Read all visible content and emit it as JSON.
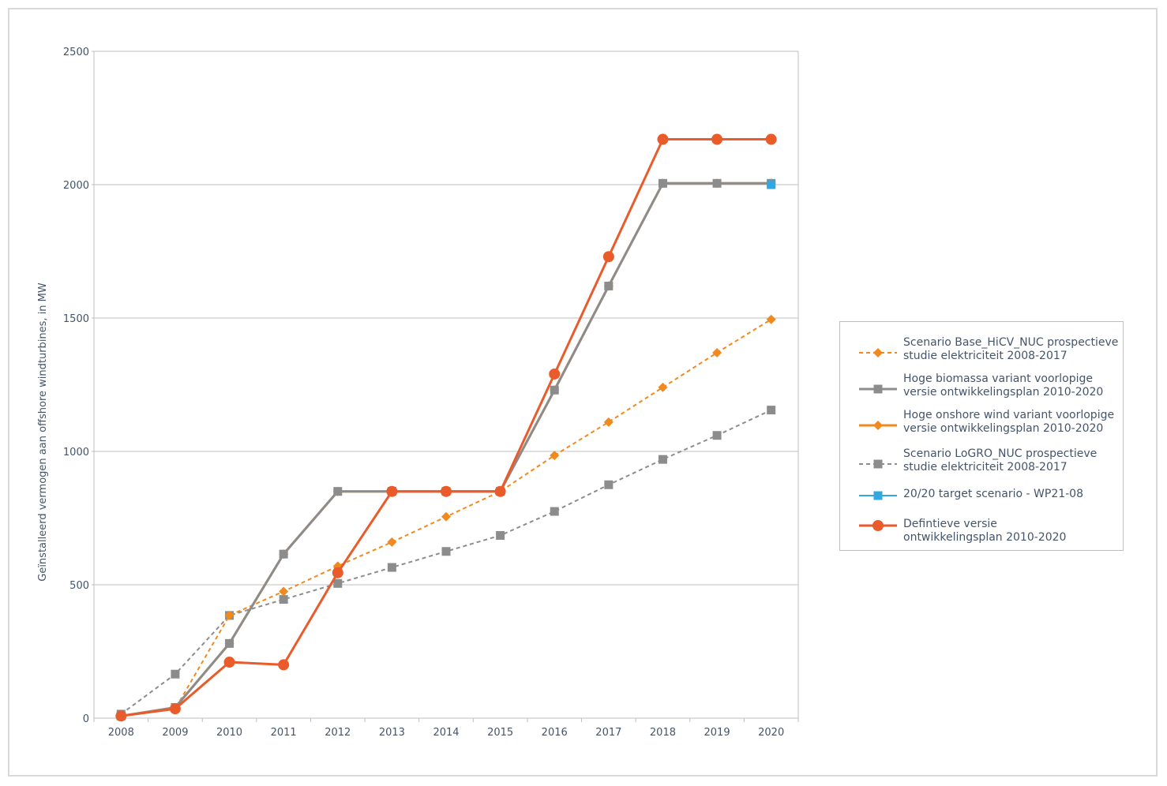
{
  "chart_data": {
    "type": "line",
    "title": "",
    "xlabel": "",
    "ylabel": "Geïnstalleerd vermogen aan offshore windturbines, in MW",
    "ylim": [
      0,
      2500
    ],
    "yticks": [
      0,
      500,
      1000,
      1500,
      2000,
      2500
    ],
    "grid": true,
    "legend_position": "right",
    "categories": [
      "2008",
      "2009",
      "2010",
      "2011",
      "2012",
      "2013",
      "2014",
      "2015",
      "2016",
      "2017",
      "2018",
      "2019",
      "2020"
    ],
    "series": [
      {
        "name": "Scenario Base_HiCV_NUC prospectieve studie elektriciteit 2008-2017",
        "color": "#f08a1f",
        "dash": true,
        "marker": "diamond",
        "lineWidth": 2,
        "values": [
          8,
          35,
          385,
          475,
          570,
          660,
          755,
          850,
          985,
          1110,
          1240,
          1370,
          1495
        ]
      },
      {
        "name": "Hoge biomassa variant voorlopige versie ontwikkelingsplan 2010-2020",
        "color": "#8c8c8c",
        "dash": false,
        "marker": "square",
        "lineWidth": 3,
        "values": [
          8,
          40,
          280,
          615,
          850,
          850,
          850,
          850,
          1230,
          1620,
          2005,
          2005,
          2005
        ]
      },
      {
        "name": "Hoge onshore wind variant voorlopige versie ontwikkelingsplan 2010-2020",
        "color": "#f08a1f",
        "dash": false,
        "marker": "diamond",
        "lineWidth": 3,
        "values": [
          8,
          40,
          280,
          615,
          850,
          850,
          850,
          850,
          1230,
          1620,
          2005,
          2005,
          2005
        ]
      },
      {
        "name": "Scenario LoGRO_NUC prospectieve studie elektriciteit 2008-2017",
        "color": "#8c8c8c",
        "dash": true,
        "marker": "square",
        "lineWidth": 2,
        "values": [
          15,
          165,
          385,
          445,
          505,
          565,
          625,
          685,
          775,
          875,
          970,
          1060,
          1155
        ]
      },
      {
        "name": "20/20 target scenario - WP21-08",
        "color": "#31a9e0",
        "dash": false,
        "marker": "square",
        "lineWidth": 2,
        "values": [
          null,
          null,
          null,
          null,
          null,
          null,
          null,
          null,
          null,
          null,
          null,
          null,
          2000
        ]
      },
      {
        "name": "Defintieve versie ontwikkelingsplan 2010-2020",
        "color": "#ea5b2b",
        "dash": false,
        "marker": "circle",
        "lineWidth": 3,
        "values": [
          8,
          35,
          210,
          200,
          545,
          850,
          850,
          850,
          1290,
          1730,
          2170,
          2170,
          2170
        ]
      }
    ]
  },
  "legend": {
    "items": [
      {
        "line1": "Scenario Base_HiCV_NUC prospectieve",
        "line2": "studie elektriciteit 2008-2017"
      },
      {
        "line1": "Hoge biomassa variant voorlopige",
        "line2": "versie ontwikkelingsplan 2010-2020"
      },
      {
        "line1": "Hoge onshore wind variant voorlopige",
        "line2": "versie ontwikkelingsplan 2010-2020"
      },
      {
        "line1": "Scenario LoGRO_NUC prospectieve",
        "line2": "studie elektriciteit 2008-2017"
      },
      {
        "line1": "20/20 target scenario - WP21-08",
        "line2": ""
      },
      {
        "line1": "Defintieve versie",
        "line2": "ontwikkelingsplan 2010-2020"
      }
    ]
  }
}
